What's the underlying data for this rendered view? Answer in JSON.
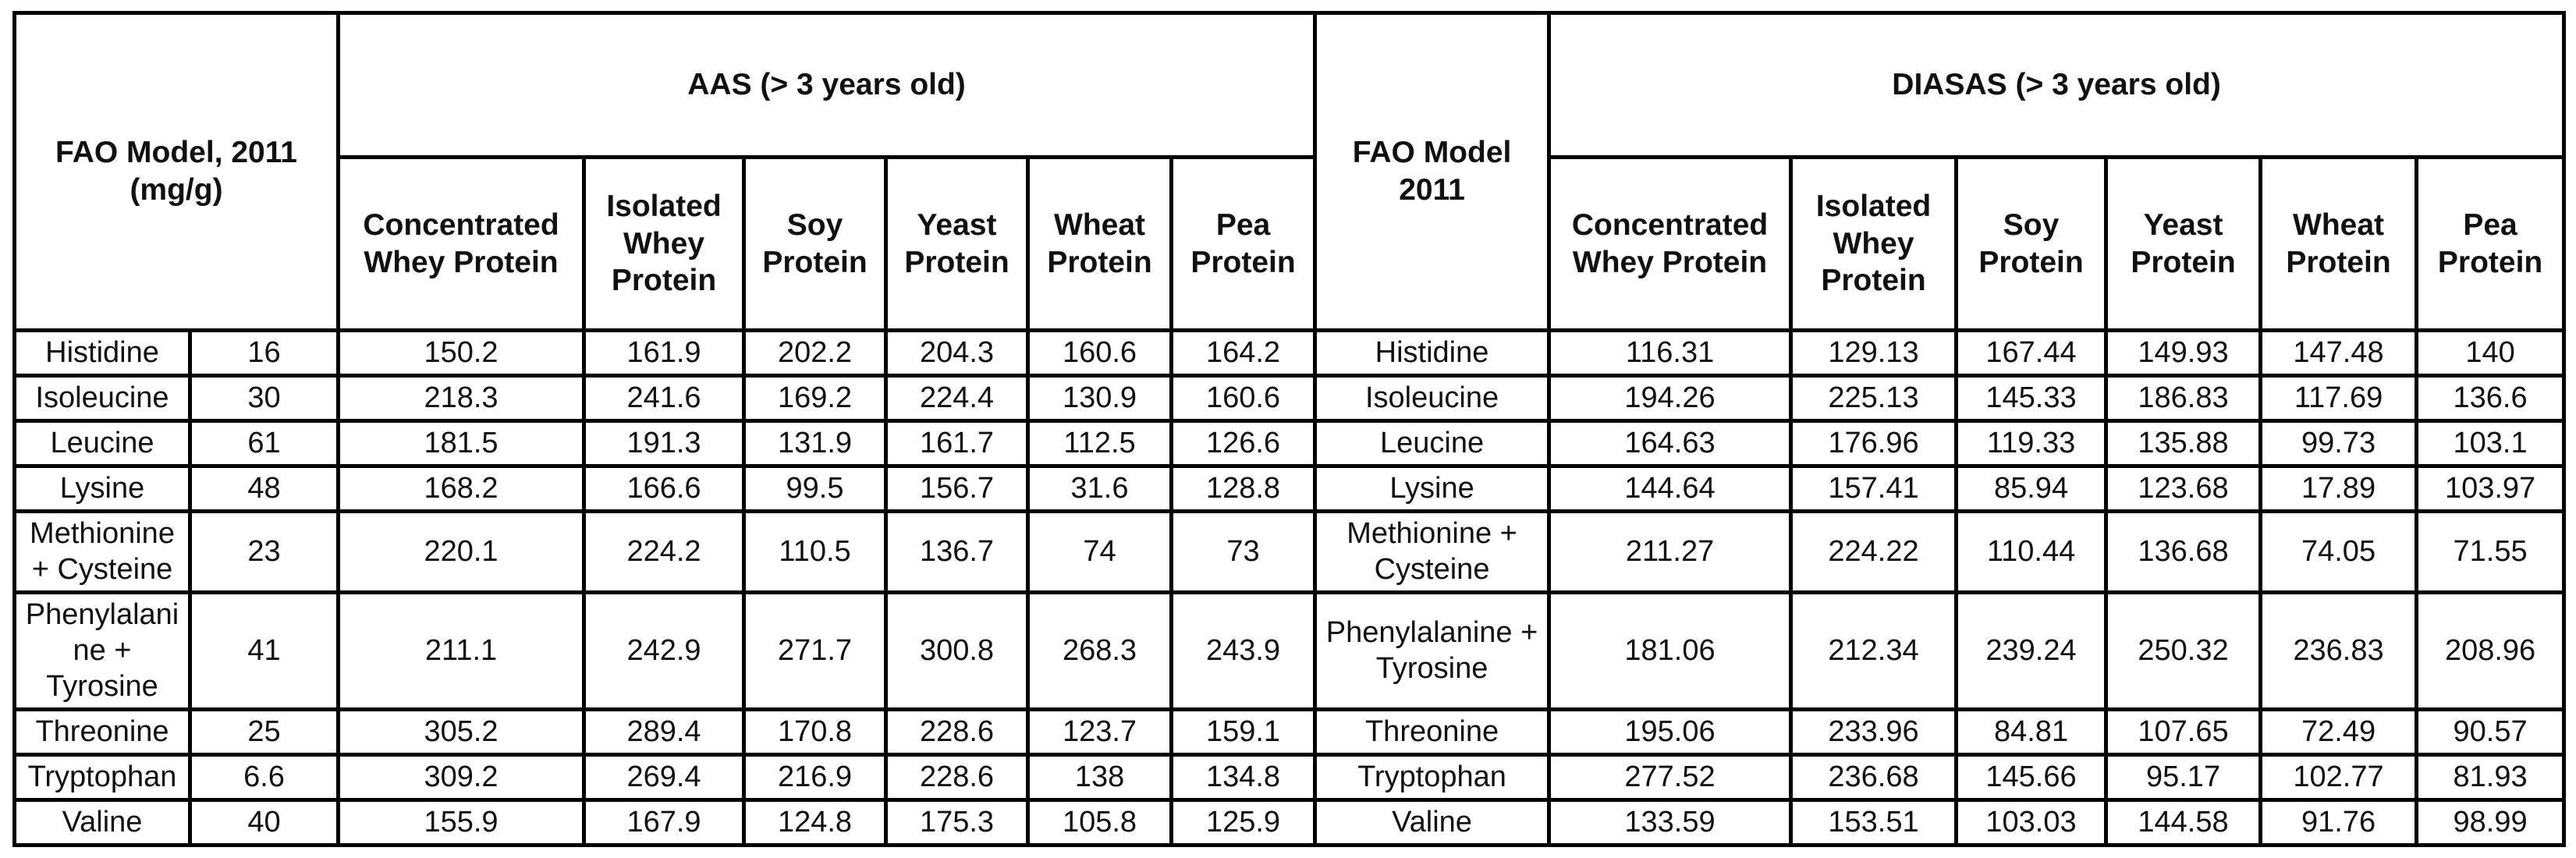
{
  "colors": {
    "border": "#000000",
    "background": "#ffffff",
    "text": "#111111"
  },
  "table": {
    "left_header": "FAO Model, 2011 (mg/g)",
    "aas_header": "AAS (> 3 years old)",
    "mid_header": "FAO Model 2011",
    "diasas_header": "DIASAS (> 3 years old)",
    "protein_columns": [
      "Concentrated Whey Protein",
      "Isolated Whey Protein",
      "Soy Protein",
      "Yeast Protein",
      "Wheat Protein",
      "Pea Protein"
    ],
    "rows": [
      {
        "name": "Histidine",
        "fao": "16",
        "aas": [
          "150.2",
          "161.9",
          "202.2",
          "204.3",
          "160.6",
          "164.2"
        ],
        "diasas": [
          "116.31",
          "129.13",
          "167.44",
          "149.93",
          "147.48",
          "140"
        ]
      },
      {
        "name": "Isoleucine",
        "fao": "30",
        "aas": [
          "218.3",
          "241.6",
          "169.2",
          "224.4",
          "130.9",
          "160.6"
        ],
        "diasas": [
          "194.26",
          "225.13",
          "145.33",
          "186.83",
          "117.69",
          "136.6"
        ]
      },
      {
        "name": "Leucine",
        "fao": "61",
        "aas": [
          "181.5",
          "191.3",
          "131.9",
          "161.7",
          "112.5",
          "126.6"
        ],
        "diasas": [
          "164.63",
          "176.96",
          "119.33",
          "135.88",
          "99.73",
          "103.1"
        ]
      },
      {
        "name": "Lysine",
        "fao": "48",
        "aas": [
          "168.2",
          "166.6",
          "99.5",
          "156.7",
          "31.6",
          "128.8"
        ],
        "diasas": [
          "144.64",
          "157.41",
          "85.94",
          "123.68",
          "17.89",
          "103.97"
        ]
      },
      {
        "name": "Methionine + Cysteine",
        "fao": "23",
        "aas": [
          "220.1",
          "224.2",
          "110.5",
          "136.7",
          "74",
          "73"
        ],
        "diasas": [
          "211.27",
          "224.22",
          "110.44",
          "136.68",
          "74.05",
          "71.55"
        ]
      },
      {
        "name": "Phenylalanine + Tyrosine",
        "fao": "41",
        "aas": [
          "211.1",
          "242.9",
          "271.7",
          "300.8",
          "268.3",
          "243.9"
        ],
        "diasas": [
          "181.06",
          "212.34",
          "239.24",
          "250.32",
          "236.83",
          "208.96"
        ]
      },
      {
        "name": "Threonine",
        "fao": "25",
        "aas": [
          "305.2",
          "289.4",
          "170.8",
          "228.6",
          "123.7",
          "159.1"
        ],
        "diasas": [
          "195.06",
          "233.96",
          "84.81",
          "107.65",
          "72.49",
          "90.57"
        ]
      },
      {
        "name": "Tryptophan",
        "fao": "6.6",
        "aas": [
          "309.2",
          "269.4",
          "216.9",
          "228.6",
          "138",
          "134.8"
        ],
        "diasas": [
          "277.52",
          "236.68",
          "145.66",
          "95.17",
          "102.77",
          "81.93"
        ]
      },
      {
        "name": "Valine",
        "fao": "40",
        "aas": [
          "155.9",
          "167.9",
          "124.8",
          "175.3",
          "105.8",
          "125.9"
        ],
        "diasas": [
          "133.59",
          "153.51",
          "103.03",
          "144.58",
          "91.76",
          "98.99"
        ]
      }
    ]
  }
}
